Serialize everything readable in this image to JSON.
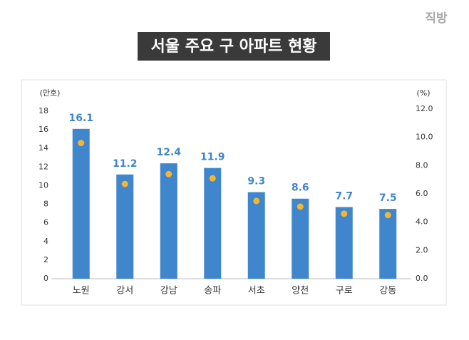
{
  "logo": "직방",
  "chart_data": {
    "type": "bar",
    "title": "서울 주요 구 아파트 현황",
    "y_label": "(만호)",
    "y2_label": "(%)",
    "categories": [
      "노원",
      "강서",
      "강남",
      "송파",
      "서초",
      "양천",
      "구로",
      "강동"
    ],
    "series": [
      {
        "type": "bar",
        "color": "#3f86cc",
        "values": [
          16.1,
          11.2,
          12.4,
          11.9,
          9.3,
          8.6,
          7.7,
          7.5
        ]
      },
      {
        "type": "dot",
        "axis": "y2",
        "color": "#f2b632",
        "values": [
          9.6,
          6.7,
          7.4,
          7.1,
          5.5,
          5.1,
          4.6,
          4.5
        ]
      }
    ],
    "ylim": [
      0,
      18
    ],
    "yticks": [
      0,
      2,
      4,
      6,
      8,
      10,
      12,
      14,
      16,
      18
    ],
    "y2lim": [
      0,
      12
    ],
    "y2ticks": [
      {
        "value": 0,
        "label": "0.0"
      },
      {
        "value": 2,
        "label": "2.0"
      },
      {
        "value": 4,
        "label": "4.0"
      },
      {
        "value": 6,
        "label": "6.0"
      },
      {
        "value": 8,
        "label": "8.0"
      },
      {
        "value": 10,
        "label": "10.0"
      },
      {
        "value": 12,
        "label": "12.0"
      }
    ]
  }
}
